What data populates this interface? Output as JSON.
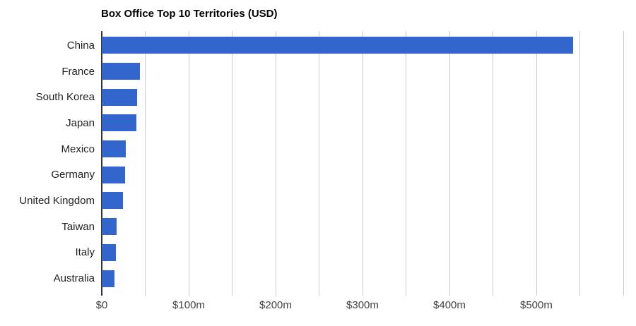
{
  "colors": {
    "bar": "#3366cc",
    "gridline": "#cccccc",
    "axis_line": "#333333",
    "axis_label": "#444444",
    "category_label": "#222222",
    "title": "#000000",
    "background": "#ffffff"
  },
  "chart_data": {
    "type": "bar",
    "orientation": "horizontal",
    "title": "Box Office Top 10 Territories (USD)",
    "categories": [
      "China",
      "France",
      "South Korea",
      "Japan",
      "Mexico",
      "Germany",
      "United Kingdom",
      "Taiwan",
      "Italy",
      "Australia"
    ],
    "values": [
      542,
      44,
      41,
      40,
      28,
      27,
      24,
      17,
      16,
      15
    ],
    "unit": "USD millions",
    "xlabel": "",
    "ylabel": "",
    "xlim": [
      0,
      609
    ],
    "gridline_interval": 50,
    "gridline_max": 600,
    "grid": true,
    "legend": "none",
    "x_ticks": [
      {
        "value": 0,
        "label": "$0"
      },
      {
        "value": 100,
        "label": "$100m"
      },
      {
        "value": 200,
        "label": "$200m"
      },
      {
        "value": 300,
        "label": "$300m"
      },
      {
        "value": 400,
        "label": "$400m"
      },
      {
        "value": 500,
        "label": "$500m"
      }
    ]
  }
}
